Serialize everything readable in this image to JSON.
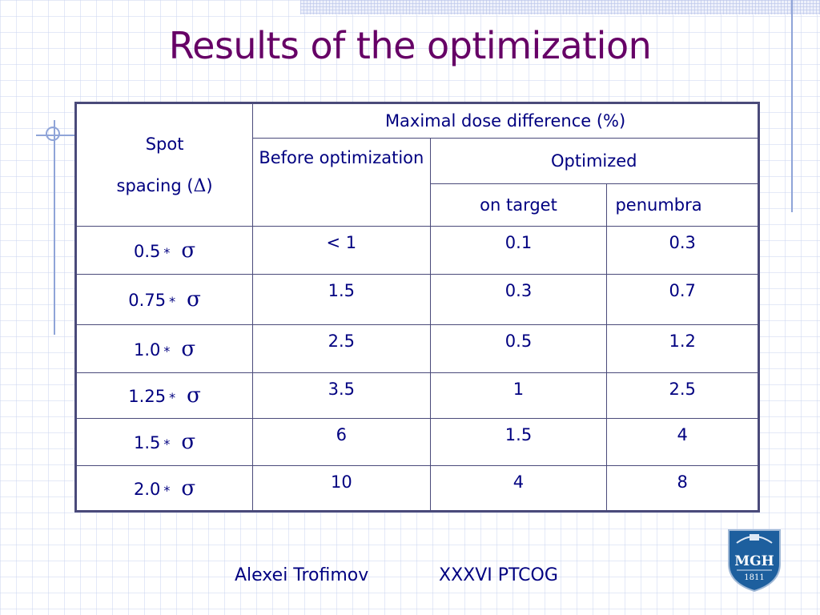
{
  "slide": {
    "title": "Results of the optimization",
    "footer_author": "Alexei Trofimov",
    "footer_event": "XXXVI PTCOG"
  },
  "table": {
    "header_spot": "Spot",
    "header_spacing": "spacing (",
    "header_spacing_symbol": "Δ",
    "header_spacing_close": ")",
    "header_max_dose": "Maximal dose difference (%)",
    "header_before": "Before optimization",
    "header_optimized": "Optimized",
    "header_on_target": "on target",
    "header_penumbra": "penumbra",
    "star_symbol": "*",
    "sigma_symbol": "σ",
    "rows": [
      {
        "spacing": "0.5",
        "before": "< 1",
        "on_target": "0.1",
        "penumbra": "0.3"
      },
      {
        "spacing": "0.75",
        "before": "1.5",
        "on_target": "0.3",
        "penumbra": "0.7"
      },
      {
        "spacing": "1.0",
        "before": "2.5",
        "on_target": "0.5",
        "penumbra": "1.2"
      },
      {
        "spacing": "1.25",
        "before": "3.5",
        "on_target": "1",
        "penumbra": "2.5"
      },
      {
        "spacing": "1.5",
        "before": "6",
        "on_target": "1.5",
        "penumbra": "4"
      },
      {
        "spacing": "2.0",
        "before": "10",
        "on_target": "4",
        "penumbra": "8"
      }
    ]
  },
  "logo": {
    "text": "MGH",
    "year": "1811"
  },
  "colors": {
    "title": "#660066",
    "text": "#000080",
    "border": "#4a4a7a",
    "logo_blue": "#1d5f9e"
  }
}
